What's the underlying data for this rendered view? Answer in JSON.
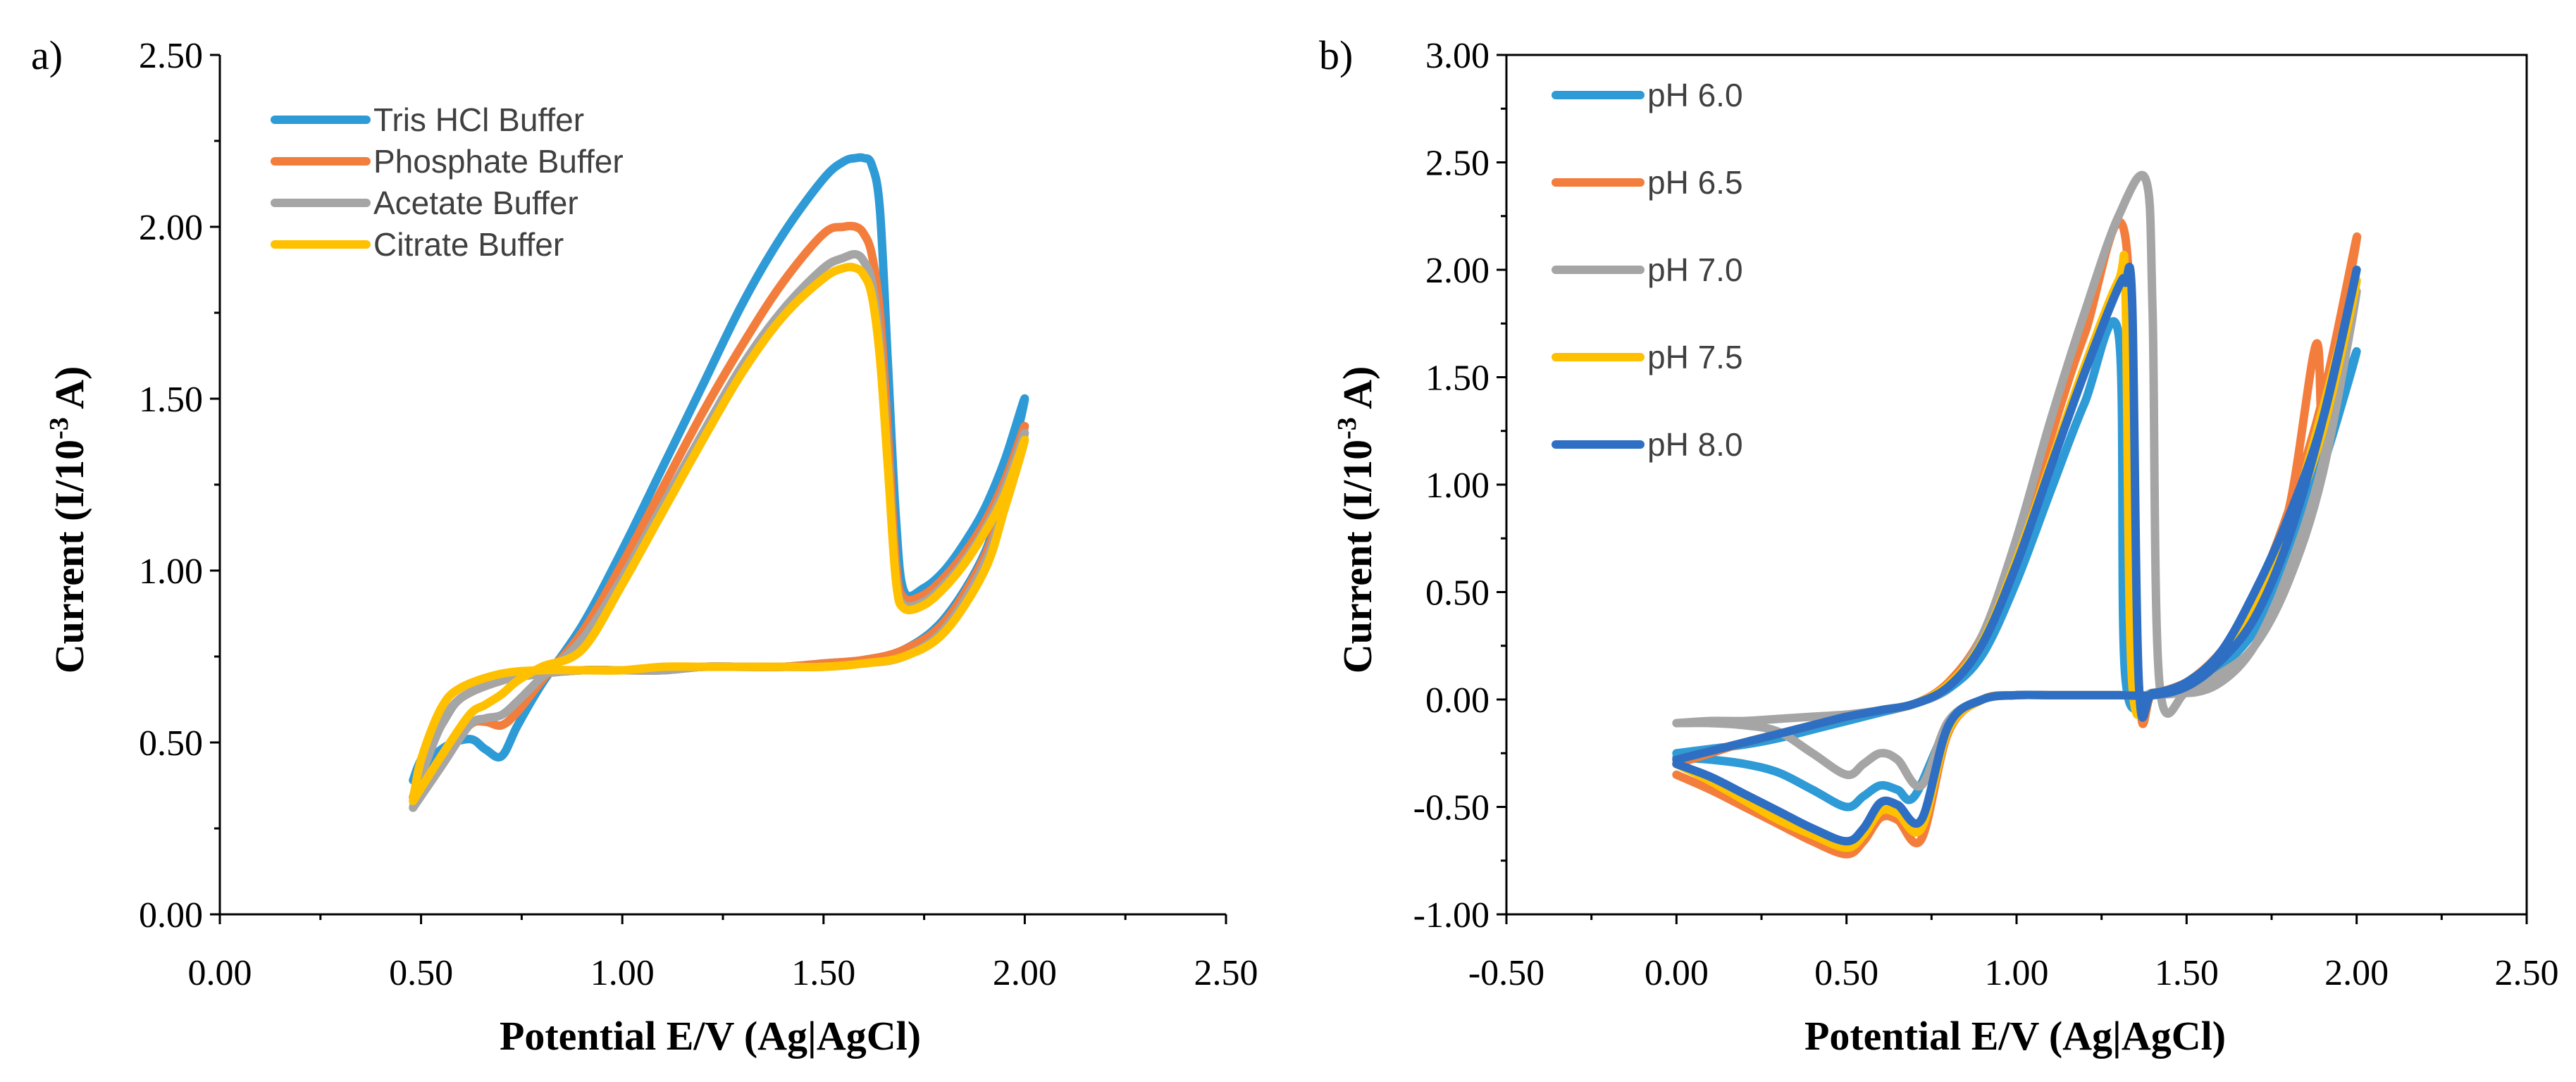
{
  "chart_data": [
    {
      "panel_label": "a)",
      "type": "line",
      "title": "",
      "xlabel": "Potential E/V (Ag|AgCl)",
      "ylabel": "Current (I/10-3 A)",
      "ylabel_parts": [
        "Current (I/10",
        "-3",
        " A)"
      ],
      "xlim": [
        0,
        2.5
      ],
      "ylim": [
        0,
        2.5
      ],
      "xticks": [
        "0.00",
        "0.50",
        "1.00",
        "1.50",
        "2.00",
        "2.50"
      ],
      "yticks": [
        "0.00",
        "0.50",
        "1.00",
        "1.50",
        "2.00",
        "2.50"
      ],
      "legend_position": "top-left",
      "grid": false,
      "series": [
        {
          "name": "Tris HCl Buffer",
          "color": "#2E9AD6",
          "x": [
            0.48,
            0.55,
            0.62,
            0.66,
            0.7,
            0.74,
            0.8,
            0.9,
            1.0,
            1.1,
            1.2,
            1.3,
            1.4,
            1.5,
            1.55,
            1.58,
            1.6,
            1.62,
            1.64,
            1.66,
            1.68,
            1.7,
            1.75,
            1.8,
            1.85,
            1.9,
            1.95,
            2.0,
            1.95,
            1.9,
            1.8,
            1.7,
            1.6,
            1.5,
            1.4,
            1.3,
            1.2,
            1.1,
            1.0,
            0.9,
            0.8,
            0.7,
            0.6,
            0.55,
            0.5,
            0.48
          ],
          "y": [
            0.39,
            0.48,
            0.51,
            0.48,
            0.46,
            0.55,
            0.67,
            0.84,
            1.06,
            1.3,
            1.54,
            1.78,
            1.98,
            2.14,
            2.19,
            2.2,
            2.2,
            2.18,
            2.05,
            1.6,
            1.15,
            0.94,
            0.95,
            1.0,
            1.08,
            1.18,
            1.32,
            1.5,
            1.25,
            1.05,
            0.86,
            0.77,
            0.74,
            0.73,
            0.72,
            0.72,
            0.72,
            0.71,
            0.71,
            0.71,
            0.7,
            0.68,
            0.63,
            0.55,
            0.45,
            0.39
          ]
        },
        {
          "name": "Phosphate Buffer",
          "color": "#F37D3C",
          "x": [
            0.48,
            0.55,
            0.62,
            0.66,
            0.7,
            0.74,
            0.8,
            0.9,
            1.0,
            1.1,
            1.2,
            1.3,
            1.4,
            1.5,
            1.55,
            1.58,
            1.6,
            1.62,
            1.64,
            1.66,
            1.68,
            1.7,
            1.75,
            1.8,
            1.85,
            1.9,
            1.95,
            2.0,
            1.95,
            1.9,
            1.8,
            1.7,
            1.6,
            1.5,
            1.4,
            1.3,
            1.2,
            1.1,
            1.0,
            0.9,
            0.8,
            0.7,
            0.6,
            0.55,
            0.5,
            0.48
          ],
          "y": [
            0.34,
            0.45,
            0.55,
            0.56,
            0.55,
            0.59,
            0.68,
            0.82,
            1.02,
            1.24,
            1.46,
            1.66,
            1.84,
            1.98,
            2.0,
            2.0,
            1.98,
            1.92,
            1.75,
            1.4,
            1.02,
            0.92,
            0.93,
            0.98,
            1.05,
            1.14,
            1.26,
            1.42,
            1.22,
            1.04,
            0.85,
            0.77,
            0.74,
            0.73,
            0.72,
            0.72,
            0.72,
            0.71,
            0.71,
            0.71,
            0.7,
            0.68,
            0.63,
            0.55,
            0.42,
            0.34
          ]
        },
        {
          "name": "Acetate Buffer",
          "color": "#A5A5A5",
          "x": [
            0.48,
            0.55,
            0.62,
            0.66,
            0.7,
            0.74,
            0.8,
            0.9,
            1.0,
            1.1,
            1.2,
            1.3,
            1.4,
            1.5,
            1.55,
            1.58,
            1.6,
            1.62,
            1.64,
            1.66,
            1.68,
            1.7,
            1.75,
            1.8,
            1.85,
            1.9,
            1.95,
            2.0,
            1.95,
            1.9,
            1.8,
            1.7,
            1.6,
            1.5,
            1.4,
            1.3,
            1.2,
            1.1,
            1.0,
            0.9,
            0.8,
            0.7,
            0.6,
            0.55,
            0.5,
            0.48
          ],
          "y": [
            0.31,
            0.43,
            0.55,
            0.57,
            0.58,
            0.62,
            0.69,
            0.8,
            0.98,
            1.19,
            1.4,
            1.6,
            1.76,
            1.88,
            1.91,
            1.92,
            1.9,
            1.84,
            1.66,
            1.32,
            0.98,
            0.9,
            0.91,
            0.96,
            1.03,
            1.12,
            1.24,
            1.4,
            1.2,
            1.02,
            0.83,
            0.75,
            0.73,
            0.72,
            0.72,
            0.72,
            0.72,
            0.71,
            0.71,
            0.71,
            0.7,
            0.68,
            0.63,
            0.55,
            0.4,
            0.31
          ]
        },
        {
          "name": "Citrate Buffer",
          "color": "#FFC000",
          "x": [
            0.48,
            0.55,
            0.62,
            0.66,
            0.7,
            0.74,
            0.8,
            0.9,
            1.0,
            1.1,
            1.2,
            1.3,
            1.4,
            1.5,
            1.55,
            1.58,
            1.6,
            1.62,
            1.64,
            1.66,
            1.68,
            1.7,
            1.75,
            1.8,
            1.85,
            1.9,
            1.95,
            2.0,
            1.95,
            1.9,
            1.8,
            1.7,
            1.6,
            1.5,
            1.4,
            1.3,
            1.2,
            1.1,
            1.0,
            0.9,
            0.8,
            0.7,
            0.6,
            0.55,
            0.5,
            0.48
          ],
          "y": [
            0.33,
            0.46,
            0.58,
            0.61,
            0.64,
            0.68,
            0.72,
            0.77,
            0.96,
            1.17,
            1.38,
            1.58,
            1.74,
            1.85,
            1.88,
            1.88,
            1.86,
            1.8,
            1.62,
            1.3,
            0.97,
            0.89,
            0.9,
            0.95,
            1.02,
            1.11,
            1.22,
            1.38,
            1.18,
            1.0,
            0.82,
            0.75,
            0.73,
            0.72,
            0.72,
            0.72,
            0.72,
            0.72,
            0.71,
            0.71,
            0.71,
            0.7,
            0.66,
            0.6,
            0.45,
            0.33
          ]
        }
      ]
    },
    {
      "panel_label": "b)",
      "type": "line",
      "title": "",
      "xlabel": "Potential E/V (Ag|AgCl)",
      "ylabel": "Current (I/10-3 A)",
      "ylabel_parts": [
        "Current (I/10",
        "-3",
        " A)"
      ],
      "xlim": [
        -0.5,
        2.5
      ],
      "ylim": [
        -1.0,
        3.0
      ],
      "xticks": [
        "-0.50",
        "0.00",
        "0.50",
        "1.00",
        "1.50",
        "2.00",
        "2.50"
      ],
      "yticks": [
        "-1.00",
        "-0.50",
        "0.00",
        "0.50",
        "1.00",
        "1.50",
        "2.00",
        "2.50",
        "3.00"
      ],
      "legend_position": "top-left",
      "grid": false,
      "series": [
        {
          "name": "pH 6.0",
          "color": "#2E9AD6",
          "x": [
            0.0,
            0.1,
            0.2,
            0.3,
            0.4,
            0.5,
            0.55,
            0.6,
            0.65,
            0.7,
            0.8,
            0.9,
            1.0,
            1.1,
            1.2,
            1.3,
            1.4,
            1.5,
            1.6,
            1.7,
            1.8,
            1.9,
            2.0,
            1.9,
            1.8,
            1.7,
            1.6,
            1.5,
            1.4,
            1.32,
            1.3,
            1.2,
            1.1,
            1.0,
            0.9,
            0.8,
            0.7,
            0.6,
            0.5,
            0.4,
            0.3,
            0.2,
            0.1,
            0.0
          ],
          "y": [
            -0.27,
            -0.28,
            -0.3,
            -0.34,
            -0.42,
            -0.5,
            -0.45,
            -0.4,
            -0.42,
            -0.45,
            -0.12,
            0.0,
            0.02,
            0.02,
            0.02,
            0.02,
            0.02,
            0.05,
            0.15,
            0.32,
            0.62,
            1.08,
            1.62,
            1.15,
            0.72,
            0.38,
            0.14,
            0.05,
            0.03,
            0.1,
            1.7,
            1.38,
            0.97,
            0.55,
            0.21,
            0.05,
            -0.02,
            -0.06,
            -0.1,
            -0.14,
            -0.18,
            -0.21,
            -0.23,
            -0.25
          ]
        },
        {
          "name": "pH 6.5",
          "color": "#F37D3C",
          "x": [
            0.0,
            0.1,
            0.2,
            0.3,
            0.4,
            0.5,
            0.55,
            0.6,
            0.65,
            0.72,
            0.8,
            0.9,
            1.0,
            1.1,
            1.2,
            1.3,
            1.4,
            1.5,
            1.6,
            1.7,
            1.8,
            1.88,
            1.9,
            1.95,
            2.0,
            1.9,
            1.8,
            1.7,
            1.6,
            1.5,
            1.4,
            1.36,
            1.32,
            1.2,
            1.1,
            1.0,
            0.9,
            0.8,
            0.7,
            0.6,
            0.5,
            0.4,
            0.3,
            0.2,
            0.1,
            0.0
          ],
          "y": [
            -0.35,
            -0.42,
            -0.5,
            -0.58,
            -0.66,
            -0.72,
            -0.66,
            -0.55,
            -0.56,
            -0.65,
            -0.15,
            0.0,
            0.02,
            0.02,
            0.02,
            0.02,
            0.02,
            0.08,
            0.22,
            0.45,
            0.88,
            1.65,
            1.3,
            1.7,
            2.15,
            1.4,
            0.88,
            0.48,
            0.2,
            0.08,
            0.03,
            0.05,
            2.15,
            1.7,
            1.22,
            0.7,
            0.3,
            0.08,
            -0.02,
            -0.05,
            -0.08,
            -0.12,
            -0.16,
            -0.2,
            -0.25,
            -0.3
          ]
        },
        {
          "name": "pH 7.0",
          "color": "#A5A5A5",
          "x": [
            0.0,
            0.1,
            0.2,
            0.3,
            0.4,
            0.5,
            0.55,
            0.6,
            0.65,
            0.72,
            0.8,
            0.9,
            1.0,
            1.1,
            1.2,
            1.3,
            1.4,
            1.5,
            1.6,
            1.7,
            1.8,
            1.9,
            2.0,
            1.9,
            1.8,
            1.7,
            1.6,
            1.5,
            1.42,
            1.4,
            1.38,
            1.3,
            1.2,
            1.1,
            1.0,
            0.9,
            0.8,
            0.7,
            0.6,
            0.5,
            0.4,
            0.3,
            0.2,
            0.1,
            0.0
          ],
          "y": [
            -0.11,
            -0.11,
            -0.12,
            -0.15,
            -0.25,
            -0.35,
            -0.3,
            -0.25,
            -0.28,
            -0.4,
            -0.1,
            0.0,
            0.02,
            0.02,
            0.02,
            0.02,
            0.02,
            0.04,
            0.12,
            0.25,
            0.55,
            1.05,
            1.9,
            1.1,
            0.6,
            0.25,
            0.08,
            0.03,
            0.08,
            1.8,
            2.42,
            2.25,
            1.8,
            1.3,
            0.75,
            0.3,
            0.06,
            -0.02,
            -0.05,
            -0.07,
            -0.08,
            -0.09,
            -0.1,
            -0.1,
            -0.11
          ]
        },
        {
          "name": "pH 7.5",
          "color": "#FFC000",
          "x": [
            0.0,
            0.1,
            0.2,
            0.3,
            0.4,
            0.5,
            0.55,
            0.6,
            0.65,
            0.72,
            0.8,
            0.9,
            1.0,
            1.1,
            1.2,
            1.3,
            1.4,
            1.5,
            1.6,
            1.7,
            1.8,
            1.9,
            2.0,
            1.9,
            1.8,
            1.7,
            1.6,
            1.5,
            1.4,
            1.34,
            1.32,
            1.3,
            1.2,
            1.1,
            1.0,
            0.9,
            0.8,
            0.7,
            0.6,
            0.5,
            0.4,
            0.3,
            0.2,
            0.1,
            0.0
          ],
          "y": [
            -0.3,
            -0.38,
            -0.47,
            -0.56,
            -0.63,
            -0.69,
            -0.63,
            -0.52,
            -0.53,
            -0.6,
            -0.14,
            0.0,
            0.02,
            0.02,
            0.02,
            0.02,
            0.02,
            0.07,
            0.2,
            0.4,
            0.8,
            1.35,
            1.95,
            1.25,
            0.8,
            0.42,
            0.18,
            0.07,
            0.03,
            0.08,
            1.9,
            1.95,
            1.55,
            1.1,
            0.65,
            0.27,
            0.07,
            -0.02,
            -0.05,
            -0.08,
            -0.12,
            -0.16,
            -0.2,
            -0.24,
            -0.28
          ]
        },
        {
          "name": "pH 8.0",
          "color": "#2E6FC4",
          "x": [
            0.0,
            0.1,
            0.2,
            0.3,
            0.4,
            0.5,
            0.55,
            0.6,
            0.65,
            0.72,
            0.8,
            0.9,
            1.0,
            1.1,
            1.2,
            1.3,
            1.4,
            1.5,
            1.6,
            1.7,
            1.8,
            1.9,
            2.0,
            1.9,
            1.8,
            1.7,
            1.6,
            1.5,
            1.4,
            1.36,
            1.34,
            1.32,
            1.3,
            1.2,
            1.1,
            1.0,
            0.9,
            0.8,
            0.7,
            0.6,
            0.5,
            0.4,
            0.3,
            0.2,
            0.1,
            0.0
          ],
          "y": [
            -0.3,
            -0.36,
            -0.44,
            -0.52,
            -0.6,
            -0.66,
            -0.6,
            -0.48,
            -0.49,
            -0.56,
            -0.12,
            0.0,
            0.02,
            0.02,
            0.02,
            0.02,
            0.02,
            0.06,
            0.18,
            0.38,
            0.75,
            1.3,
            2.0,
            1.3,
            0.85,
            0.5,
            0.22,
            0.08,
            0.03,
            0.06,
            1.85,
            1.94,
            1.92,
            1.52,
            1.08,
            0.63,
            0.26,
            0.06,
            -0.02,
            -0.05,
            -0.08,
            -0.12,
            -0.16,
            -0.2,
            -0.24,
            -0.28
          ]
        }
      ]
    }
  ]
}
